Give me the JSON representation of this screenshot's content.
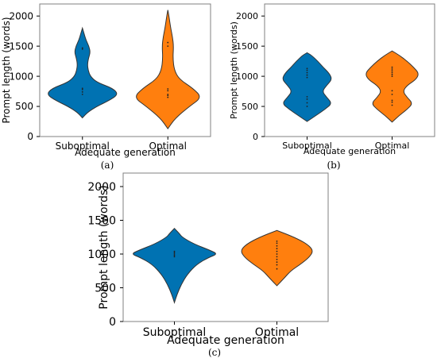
{
  "chart_data": [
    {
      "type": "violin",
      "caption": "(a)",
      "xlabel": "Adequate generation",
      "ylabel": "Prompt length (words)",
      "ylim": [
        0,
        2200
      ],
      "yticks": [
        0,
        500,
        1000,
        1500,
        2000
      ],
      "categories": [
        "Suboptimal",
        "Optimal"
      ],
      "colors": [
        "#0072b2",
        "#ff7f0e"
      ],
      "violins": [
        {
          "category": "Suboptimal",
          "profile": [
            [
              310,
              0.0
            ],
            [
              400,
              0.14
            ],
            [
              500,
              0.4
            ],
            [
              600,
              0.75
            ],
            [
              700,
              1.0
            ],
            [
              800,
              0.85
            ],
            [
              900,
              0.4
            ],
            [
              1000,
              0.22
            ],
            [
              1100,
              0.16
            ],
            [
              1200,
              0.14
            ],
            [
              1300,
              0.17
            ],
            [
              1400,
              0.22
            ],
            [
              1500,
              0.18
            ],
            [
              1600,
              0.1
            ],
            [
              1700,
              0.05
            ],
            [
              1800,
              0.0
            ]
          ],
          "points": [
            700,
            740,
            780,
            800,
            1450,
            1470
          ]
        },
        {
          "category": "Optimal",
          "profile": [
            [
              130,
              0.0
            ],
            [
              300,
              0.2
            ],
            [
              500,
              0.6
            ],
            [
              650,
              0.95
            ],
            [
              800,
              0.7
            ],
            [
              950,
              0.32
            ],
            [
              1100,
              0.18
            ],
            [
              1300,
              0.14
            ],
            [
              1500,
              0.16
            ],
            [
              1650,
              0.13
            ],
            [
              1800,
              0.08
            ],
            [
              2000,
              0.03
            ],
            [
              2100,
              0.0
            ]
          ],
          "points": [
            650,
            680,
            700,
            760,
            790,
            1500,
            1560
          ]
        }
      ]
    },
    {
      "type": "violin",
      "caption": "(b)",
      "xlabel": "Adequate generation",
      "ylabel": "Prompt length (words)",
      "ylim": [
        0,
        2200
      ],
      "yticks": [
        0,
        500,
        1000,
        1500,
        2000
      ],
      "categories": [
        "Suboptimal",
        "Optimal"
      ],
      "colors": [
        "#0072b2",
        "#ff7f0e"
      ],
      "violins": [
        {
          "category": "Suboptimal",
          "profile": [
            [
              250,
              0.0
            ],
            [
              350,
              0.25
            ],
            [
              450,
              0.5
            ],
            [
              550,
              0.7
            ],
            [
              650,
              0.55
            ],
            [
              750,
              0.42
            ],
            [
              850,
              0.55
            ],
            [
              950,
              0.7
            ],
            [
              1050,
              0.62
            ],
            [
              1150,
              0.45
            ],
            [
              1250,
              0.3
            ],
            [
              1350,
              0.12
            ],
            [
              1390,
              0.0
            ]
          ],
          "points": [
            500,
            560,
            620,
            660,
            980,
            1020,
            1060,
            1100,
            1130
          ]
        },
        {
          "category": "Optimal",
          "profile": [
            [
              240,
              0.0
            ],
            [
              350,
              0.2
            ],
            [
              450,
              0.42
            ],
            [
              550,
              0.58
            ],
            [
              650,
              0.42
            ],
            [
              750,
              0.3
            ],
            [
              850,
              0.42
            ],
            [
              950,
              0.68
            ],
            [
              1050,
              0.75
            ],
            [
              1150,
              0.6
            ],
            [
              1250,
              0.42
            ],
            [
              1350,
              0.2
            ],
            [
              1420,
              0.0
            ]
          ],
          "points": [
            520,
            570,
            600,
            700,
            760,
            1000,
            1030,
            1060,
            1090,
            1120,
            1150
          ]
        }
      ]
    },
    {
      "type": "violin",
      "caption": "(c)",
      "xlabel": "Adequate generation",
      "ylabel": "Prompt length (words)",
      "ylim": [
        0,
        2200
      ],
      "yticks": [
        0,
        500,
        1000,
        1500,
        2000
      ],
      "categories": [
        "Suboptimal",
        "Optimal"
      ],
      "colors": [
        "#0072b2",
        "#ff7f0e"
      ],
      "violins": [
        {
          "category": "Suboptimal",
          "profile": [
            [
              280,
              0.0
            ],
            [
              400,
              0.06
            ],
            [
              550,
              0.16
            ],
            [
              700,
              0.3
            ],
            [
              850,
              0.52
            ],
            [
              950,
              0.8
            ],
            [
              1000,
              1.0
            ],
            [
              1050,
              0.85
            ],
            [
              1150,
              0.45
            ],
            [
              1250,
              0.18
            ],
            [
              1300,
              0.12
            ],
            [
              1380,
              0.0
            ]
          ],
          "points": [
            960,
            980,
            1000,
            1020,
            1040
          ]
        },
        {
          "category": "Optimal",
          "profile": [
            [
              530,
              0.0
            ],
            [
              650,
              0.18
            ],
            [
              750,
              0.32
            ],
            [
              850,
              0.55
            ],
            [
              950,
              0.75
            ],
            [
              1050,
              0.85
            ],
            [
              1150,
              0.7
            ],
            [
              1250,
              0.4
            ],
            [
              1350,
              0.0
            ]
          ],
          "points": [
            780,
            840,
            880,
            920,
            960,
            1000,
            1040,
            1080,
            1120,
            1160,
            1190
          ]
        }
      ]
    }
  ]
}
